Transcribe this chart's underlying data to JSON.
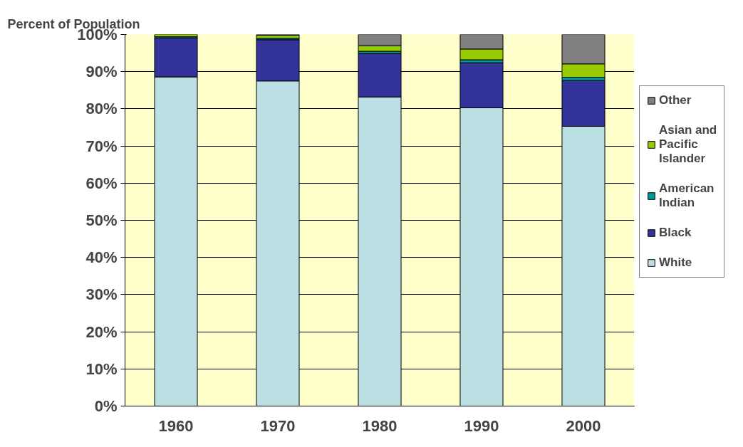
{
  "chart_data": {
    "type": "bar",
    "stacked": true,
    "ylabel": "Percent of Population",
    "categories": [
      "1960",
      "1970",
      "1980",
      "1990",
      "2000"
    ],
    "series": [
      {
        "name": "White",
        "color": "#bbe0e3",
        "values": [
          88.6,
          87.5,
          83.2,
          80.3,
          75.3
        ]
      },
      {
        "name": "Black",
        "color": "#333399",
        "values": [
          10.5,
          11.1,
          11.7,
          12.1,
          12.3
        ]
      },
      {
        "name": "American Indian",
        "color": "#009999",
        "values": [
          0.3,
          0.4,
          0.6,
          0.8,
          0.9
        ]
      },
      {
        "name": "Asian and Pacific Islander",
        "color": "#99cc00",
        "values": [
          0.6,
          0.8,
          1.5,
          2.9,
          3.6
        ]
      },
      {
        "name": "Other",
        "color": "#808080",
        "values": [
          0,
          0.2,
          3.0,
          3.9,
          7.9
        ]
      }
    ],
    "ylim": [
      0,
      100
    ],
    "yticks": [
      {
        "value": 0,
        "label": "0%"
      },
      {
        "value": 10,
        "label": "10%"
      },
      {
        "value": 20,
        "label": "20%"
      },
      {
        "value": 30,
        "label": "30%"
      },
      {
        "value": 40,
        "label": "40%"
      },
      {
        "value": 50,
        "label": "50%"
      },
      {
        "value": 60,
        "label": "60%"
      },
      {
        "value": 70,
        "label": "70%"
      },
      {
        "value": 80,
        "label": "80%"
      },
      {
        "value": 90,
        "label": "90%"
      },
      {
        "value": 100,
        "label": "100%"
      }
    ],
    "grid": "y",
    "legend": "right"
  }
}
